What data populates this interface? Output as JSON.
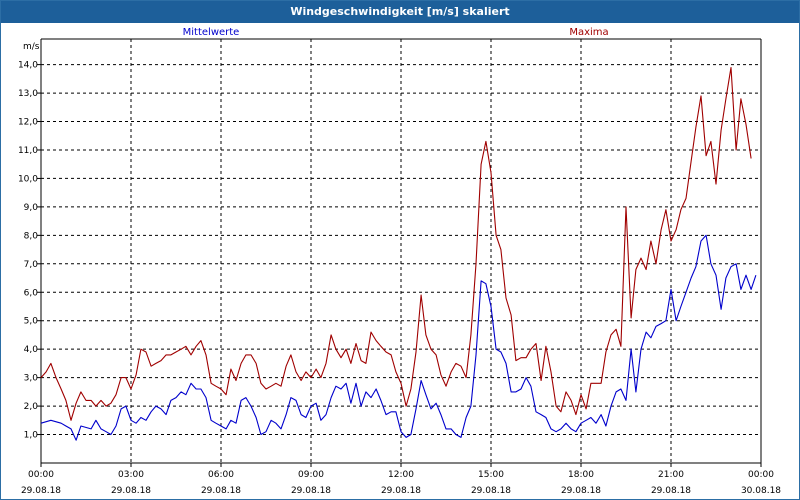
{
  "window": {
    "title": "Windgeschwindigkeit [m/s] skaliert"
  },
  "chart_data": {
    "type": "line",
    "title": "Windgeschwindigkeit [m/s] skaliert",
    "ylabel": "m/s",
    "ylim": [
      0,
      14.9
    ],
    "y_ticks": [
      "1,0",
      "2,0",
      "3,0",
      "4,0",
      "5,0",
      "6,0",
      "7,0",
      "8,0",
      "9,0",
      "10,0",
      "11,0",
      "12,0",
      "13,0",
      "14,0"
    ],
    "x_ticks": [
      {
        "time": "00:00",
        "date": "29.08.18"
      },
      {
        "time": "03:00",
        "date": "29.08.18"
      },
      {
        "time": "06:00",
        "date": "29.08.18"
      },
      {
        "time": "09:00",
        "date": "29.08.18"
      },
      {
        "time": "12:00",
        "date": "29.08.18"
      },
      {
        "time": "15:00",
        "date": "29.08.18"
      },
      {
        "time": "18:00",
        "date": "29.08.18"
      },
      {
        "time": "21:00",
        "date": "29.08.18"
      },
      {
        "time": "00:00",
        "date": "30.08.18"
      }
    ],
    "x_unit": "hours",
    "xlim": [
      0,
      24
    ],
    "grid": true,
    "series": [
      {
        "name": "Mittelwerte",
        "color": "#0000cc",
        "points": [
          [
            0,
            1.4
          ],
          [
            0.33,
            1.5
          ],
          [
            0.67,
            1.4
          ],
          [
            0.83,
            1.3
          ],
          [
            1.0,
            1.2
          ],
          [
            1.17,
            0.8
          ],
          [
            1.33,
            1.3
          ],
          [
            1.67,
            1.2
          ],
          [
            1.83,
            1.5
          ],
          [
            2.0,
            1.2
          ],
          [
            2.17,
            1.1
          ],
          [
            2.33,
            1.0
          ],
          [
            2.5,
            1.3
          ],
          [
            2.67,
            1.9
          ],
          [
            2.83,
            2.0
          ],
          [
            3.0,
            1.5
          ],
          [
            3.17,
            1.4
          ],
          [
            3.33,
            1.6
          ],
          [
            3.5,
            1.5
          ],
          [
            3.67,
            1.8
          ],
          [
            3.83,
            2.0
          ],
          [
            4.0,
            1.9
          ],
          [
            4.17,
            1.7
          ],
          [
            4.33,
            2.2
          ],
          [
            4.5,
            2.3
          ],
          [
            4.67,
            2.5
          ],
          [
            4.83,
            2.4
          ],
          [
            5.0,
            2.8
          ],
          [
            5.17,
            2.6
          ],
          [
            5.33,
            2.6
          ],
          [
            5.5,
            2.3
          ],
          [
            5.67,
            1.5
          ],
          [
            5.83,
            1.4
          ],
          [
            6.0,
            1.3
          ],
          [
            6.17,
            1.2
          ],
          [
            6.33,
            1.5
          ],
          [
            6.5,
            1.4
          ],
          [
            6.67,
            2.2
          ],
          [
            6.83,
            2.3
          ],
          [
            7.0,
            2.0
          ],
          [
            7.17,
            1.6
          ],
          [
            7.33,
            1.0
          ],
          [
            7.5,
            1.1
          ],
          [
            7.67,
            1.5
          ],
          [
            7.83,
            1.4
          ],
          [
            8.0,
            1.2
          ],
          [
            8.17,
            1.7
          ],
          [
            8.33,
            2.3
          ],
          [
            8.5,
            2.2
          ],
          [
            8.67,
            1.7
          ],
          [
            8.83,
            1.6
          ],
          [
            9.0,
            2.0
          ],
          [
            9.17,
            2.1
          ],
          [
            9.33,
            1.5
          ],
          [
            9.5,
            1.7
          ],
          [
            9.67,
            2.3
          ],
          [
            9.83,
            2.7
          ],
          [
            10.0,
            2.6
          ],
          [
            10.17,
            2.8
          ],
          [
            10.33,
            2.1
          ],
          [
            10.5,
            2.8
          ],
          [
            10.67,
            2.0
          ],
          [
            10.83,
            2.5
          ],
          [
            11.0,
            2.3
          ],
          [
            11.17,
            2.6
          ],
          [
            11.33,
            2.2
          ],
          [
            11.5,
            1.7
          ],
          [
            11.67,
            1.8
          ],
          [
            11.83,
            1.8
          ],
          [
            12.0,
            1.1
          ],
          [
            12.17,
            0.9
          ],
          [
            12.33,
            1.0
          ],
          [
            12.5,
            1.9
          ],
          [
            12.67,
            2.9
          ],
          [
            12.83,
            2.4
          ],
          [
            13.0,
            1.9
          ],
          [
            13.17,
            2.1
          ],
          [
            13.33,
            1.7
          ],
          [
            13.5,
            1.2
          ],
          [
            13.67,
            1.2
          ],
          [
            13.83,
            1.0
          ],
          [
            14.0,
            0.9
          ],
          [
            14.17,
            1.6
          ],
          [
            14.33,
            2.0
          ],
          [
            14.5,
            3.8
          ],
          [
            14.67,
            6.4
          ],
          [
            14.83,
            6.3
          ],
          [
            15.0,
            5.5
          ],
          [
            15.17,
            4.0
          ],
          [
            15.33,
            3.9
          ],
          [
            15.5,
            3.5
          ],
          [
            15.67,
            2.5
          ],
          [
            15.83,
            2.5
          ],
          [
            16.0,
            2.6
          ],
          [
            16.17,
            3.0
          ],
          [
            16.33,
            2.7
          ],
          [
            16.5,
            1.8
          ],
          [
            16.67,
            1.7
          ],
          [
            16.83,
            1.6
          ],
          [
            17.0,
            1.2
          ],
          [
            17.17,
            1.1
          ],
          [
            17.33,
            1.2
          ],
          [
            17.5,
            1.4
          ],
          [
            17.67,
            1.2
          ],
          [
            17.83,
            1.1
          ],
          [
            18.0,
            1.4
          ],
          [
            18.17,
            1.5
          ],
          [
            18.33,
            1.6
          ],
          [
            18.5,
            1.4
          ],
          [
            18.67,
            1.7
          ],
          [
            18.83,
            1.3
          ],
          [
            19.0,
            2.0
          ],
          [
            19.17,
            2.5
          ],
          [
            19.33,
            2.6
          ],
          [
            19.5,
            2.2
          ],
          [
            19.67,
            4.0
          ],
          [
            19.83,
            2.5
          ],
          [
            20.0,
            4.0
          ],
          [
            20.17,
            4.6
          ],
          [
            20.33,
            4.4
          ],
          [
            20.5,
            4.8
          ],
          [
            20.67,
            4.9
          ],
          [
            20.83,
            5.0
          ],
          [
            21.0,
            6.1
          ],
          [
            21.17,
            5.0
          ],
          [
            21.33,
            5.5
          ],
          [
            21.5,
            6.0
          ],
          [
            21.67,
            6.5
          ],
          [
            21.83,
            6.9
          ],
          [
            22.0,
            7.8
          ],
          [
            22.17,
            8.0
          ],
          [
            22.33,
            7.0
          ],
          [
            22.5,
            6.6
          ],
          [
            22.67,
            5.4
          ],
          [
            22.83,
            6.5
          ],
          [
            23.0,
            6.9
          ],
          [
            23.17,
            7.0
          ],
          [
            23.33,
            6.1
          ],
          [
            23.5,
            6.6
          ],
          [
            23.67,
            6.1
          ],
          [
            23.83,
            6.6
          ]
        ]
      },
      {
        "name": "Maxima",
        "color": "#a00000",
        "points": [
          [
            0,
            3.0
          ],
          [
            0.17,
            3.2
          ],
          [
            0.33,
            3.5
          ],
          [
            0.5,
            3.0
          ],
          [
            0.67,
            2.6
          ],
          [
            0.83,
            2.2
          ],
          [
            1.0,
            1.5
          ],
          [
            1.17,
            2.1
          ],
          [
            1.33,
            2.5
          ],
          [
            1.5,
            2.2
          ],
          [
            1.67,
            2.2
          ],
          [
            1.83,
            2.0
          ],
          [
            2.0,
            2.2
          ],
          [
            2.17,
            2.0
          ],
          [
            2.33,
            2.1
          ],
          [
            2.5,
            2.4
          ],
          [
            2.67,
            3.0
          ],
          [
            2.83,
            3.0
          ],
          [
            3.0,
            2.6
          ],
          [
            3.17,
            3.1
          ],
          [
            3.33,
            4.0
          ],
          [
            3.5,
            3.9
          ],
          [
            3.67,
            3.4
          ],
          [
            3.83,
            3.5
          ],
          [
            4.0,
            3.6
          ],
          [
            4.17,
            3.8
          ],
          [
            4.33,
            3.8
          ],
          [
            4.5,
            3.9
          ],
          [
            4.67,
            4.0
          ],
          [
            4.83,
            4.1
          ],
          [
            5.0,
            3.8
          ],
          [
            5.17,
            4.1
          ],
          [
            5.33,
            4.3
          ],
          [
            5.5,
            3.8
          ],
          [
            5.67,
            2.8
          ],
          [
            5.83,
            2.7
          ],
          [
            6.0,
            2.6
          ],
          [
            6.17,
            2.4
          ],
          [
            6.33,
            3.3
          ],
          [
            6.5,
            2.9
          ],
          [
            6.67,
            3.5
          ],
          [
            6.83,
            3.8
          ],
          [
            7.0,
            3.8
          ],
          [
            7.17,
            3.5
          ],
          [
            7.33,
            2.8
          ],
          [
            7.5,
            2.6
          ],
          [
            7.67,
            2.7
          ],
          [
            7.83,
            2.8
          ],
          [
            8.0,
            2.7
          ],
          [
            8.17,
            3.4
          ],
          [
            8.33,
            3.8
          ],
          [
            8.5,
            3.2
          ],
          [
            8.67,
            2.9
          ],
          [
            8.83,
            3.2
          ],
          [
            9.0,
            3.0
          ],
          [
            9.17,
            3.3
          ],
          [
            9.33,
            3.0
          ],
          [
            9.5,
            3.5
          ],
          [
            9.67,
            4.5
          ],
          [
            9.83,
            4.0
          ],
          [
            10.0,
            3.7
          ],
          [
            10.17,
            4.0
          ],
          [
            10.33,
            3.5
          ],
          [
            10.5,
            4.2
          ],
          [
            10.67,
            3.6
          ],
          [
            10.83,
            3.5
          ],
          [
            11.0,
            4.6
          ],
          [
            11.17,
            4.3
          ],
          [
            11.33,
            4.1
          ],
          [
            11.5,
            3.9
          ],
          [
            11.67,
            3.8
          ],
          [
            11.83,
            3.2
          ],
          [
            12.0,
            2.8
          ],
          [
            12.17,
            2.0
          ],
          [
            12.33,
            2.6
          ],
          [
            12.5,
            3.9
          ],
          [
            12.67,
            5.9
          ],
          [
            12.83,
            4.5
          ],
          [
            13.0,
            4.0
          ],
          [
            13.17,
            3.8
          ],
          [
            13.33,
            3.1
          ],
          [
            13.5,
            2.7
          ],
          [
            13.67,
            3.2
          ],
          [
            13.83,
            3.5
          ],
          [
            14.0,
            3.4
          ],
          [
            14.17,
            3.0
          ],
          [
            14.33,
            4.5
          ],
          [
            14.5,
            7.0
          ],
          [
            14.67,
            10.5
          ],
          [
            14.83,
            11.3
          ],
          [
            15.0,
            10.2
          ],
          [
            15.17,
            8.0
          ],
          [
            15.33,
            7.5
          ],
          [
            15.5,
            5.8
          ],
          [
            15.67,
            5.2
          ],
          [
            15.83,
            3.6
          ],
          [
            16.0,
            3.7
          ],
          [
            16.17,
            3.7
          ],
          [
            16.33,
            4.0
          ],
          [
            16.5,
            4.2
          ],
          [
            16.67,
            2.9
          ],
          [
            16.83,
            4.1
          ],
          [
            17.0,
            3.2
          ],
          [
            17.17,
            2.0
          ],
          [
            17.33,
            1.8
          ],
          [
            17.5,
            2.5
          ],
          [
            17.67,
            2.2
          ],
          [
            17.83,
            1.7
          ],
          [
            18.0,
            2.4
          ],
          [
            18.17,
            1.9
          ],
          [
            18.33,
            2.8
          ],
          [
            18.5,
            2.8
          ],
          [
            18.67,
            2.8
          ],
          [
            18.83,
            3.9
          ],
          [
            19.0,
            4.5
          ],
          [
            19.17,
            4.7
          ],
          [
            19.33,
            4.1
          ],
          [
            19.5,
            9.0
          ],
          [
            19.67,
            5.1
          ],
          [
            19.83,
            6.8
          ],
          [
            20.0,
            7.2
          ],
          [
            20.17,
            6.8
          ],
          [
            20.33,
            7.8
          ],
          [
            20.5,
            7.0
          ],
          [
            20.67,
            8.2
          ],
          [
            20.83,
            8.9
          ],
          [
            21.0,
            7.8
          ],
          [
            21.17,
            8.2
          ],
          [
            21.33,
            8.9
          ],
          [
            21.5,
            9.3
          ],
          [
            21.67,
            10.6
          ],
          [
            21.83,
            11.8
          ],
          [
            22.0,
            12.9
          ],
          [
            22.17,
            10.8
          ],
          [
            22.33,
            11.3
          ],
          [
            22.5,
            9.8
          ],
          [
            22.67,
            11.7
          ],
          [
            22.83,
            12.8
          ],
          [
            23.0,
            13.9
          ],
          [
            23.17,
            11.0
          ],
          [
            23.33,
            12.8
          ],
          [
            23.5,
            11.9
          ],
          [
            23.67,
            10.7
          ]
        ]
      }
    ]
  }
}
